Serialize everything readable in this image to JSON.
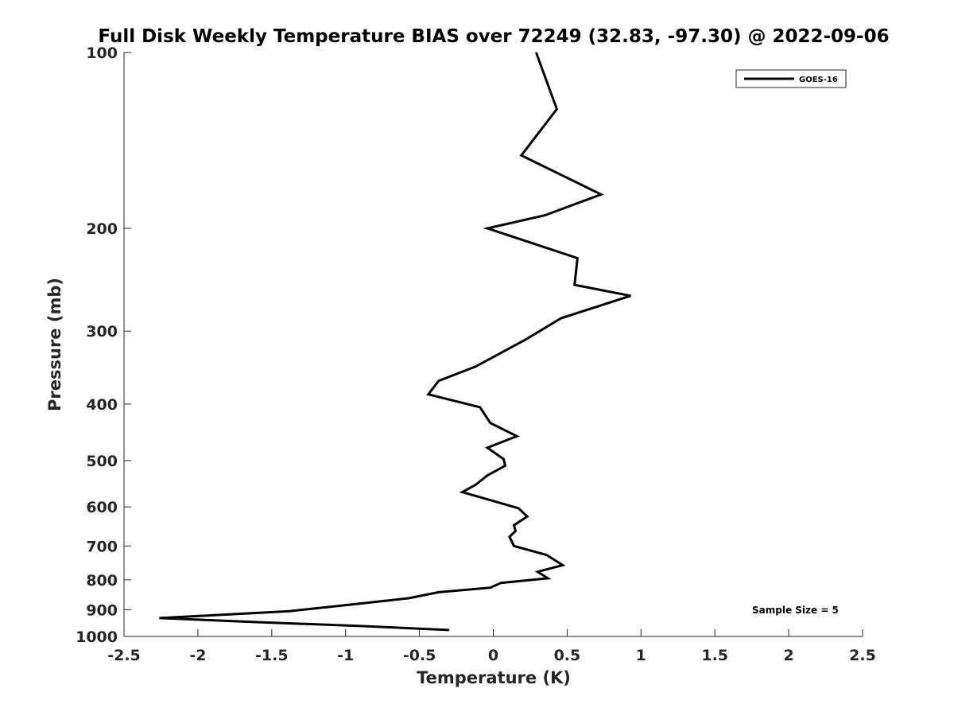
{
  "chart_data": {
    "type": "line",
    "title": "Full Disk Weekly Temperature BIAS over 72249 (32.83, -97.30) @ 2022-09-06",
    "xlabel": "Temperature (K)",
    "ylabel": "Pressure (mb)",
    "xlim": [
      -2.5,
      2.5
    ],
    "ylim": [
      100,
      1000
    ],
    "y_scale": "log",
    "y_reversed": true,
    "grid": false,
    "legend_placement": "top-right",
    "x_ticks": [
      -2.5,
      -2,
      -1.5,
      -1,
      -0.5,
      0,
      0.5,
      1,
      1.5,
      2,
      2.5
    ],
    "x_tick_labels": [
      "-2.5",
      "-2",
      "-1.5",
      "-1",
      "-0.5",
      "0",
      "0.5",
      "1",
      "1.5",
      "2",
      "2.5"
    ],
    "y_ticks": [
      100,
      200,
      300,
      400,
      500,
      600,
      700,
      800,
      900,
      1000
    ],
    "y_tick_labels": [
      "100",
      "200",
      "300",
      "400",
      "500",
      "600",
      "700",
      "800",
      "900",
      "1000"
    ],
    "series": [
      {
        "name": "GOES-16",
        "color": "#000000",
        "points": [
          [
            0.29,
            100
          ],
          [
            0.43,
            125
          ],
          [
            0.19,
            150
          ],
          [
            0.73,
            175
          ],
          [
            0.35,
            190
          ],
          [
            -0.04,
            200
          ],
          [
            0.57,
            225
          ],
          [
            0.55,
            250
          ],
          [
            0.93,
            261
          ],
          [
            0.46,
            285
          ],
          [
            0.22,
            310
          ],
          [
            -0.12,
            345
          ],
          [
            -0.37,
            365
          ],
          [
            -0.44,
            385
          ],
          [
            -0.09,
            405
          ],
          [
            -0.02,
            431
          ],
          [
            0.16,
            454
          ],
          [
            -0.04,
            475
          ],
          [
            0.07,
            497
          ],
          [
            0.08,
            510
          ],
          [
            -0.04,
            530
          ],
          [
            -0.12,
            550
          ],
          [
            -0.21,
            566
          ],
          [
            0.17,
            603
          ],
          [
            0.23,
            623
          ],
          [
            0.14,
            645
          ],
          [
            0.15,
            660
          ],
          [
            0.11,
            675
          ],
          [
            0.14,
            700
          ],
          [
            0.36,
            725
          ],
          [
            0.47,
            755
          ],
          [
            0.3,
            775
          ],
          [
            0.37,
            795
          ],
          [
            0.05,
            810
          ],
          [
            -0.02,
            825
          ],
          [
            -0.37,
            840
          ],
          [
            -0.57,
            860
          ],
          [
            -0.93,
            880
          ],
          [
            -1.38,
            905
          ],
          [
            -1.9,
            920
          ],
          [
            -2.26,
            930
          ],
          [
            -1.6,
            945
          ],
          [
            -0.88,
            960
          ],
          [
            -0.3,
            975
          ]
        ]
      }
    ],
    "annotation": "Sample Size = 5"
  }
}
